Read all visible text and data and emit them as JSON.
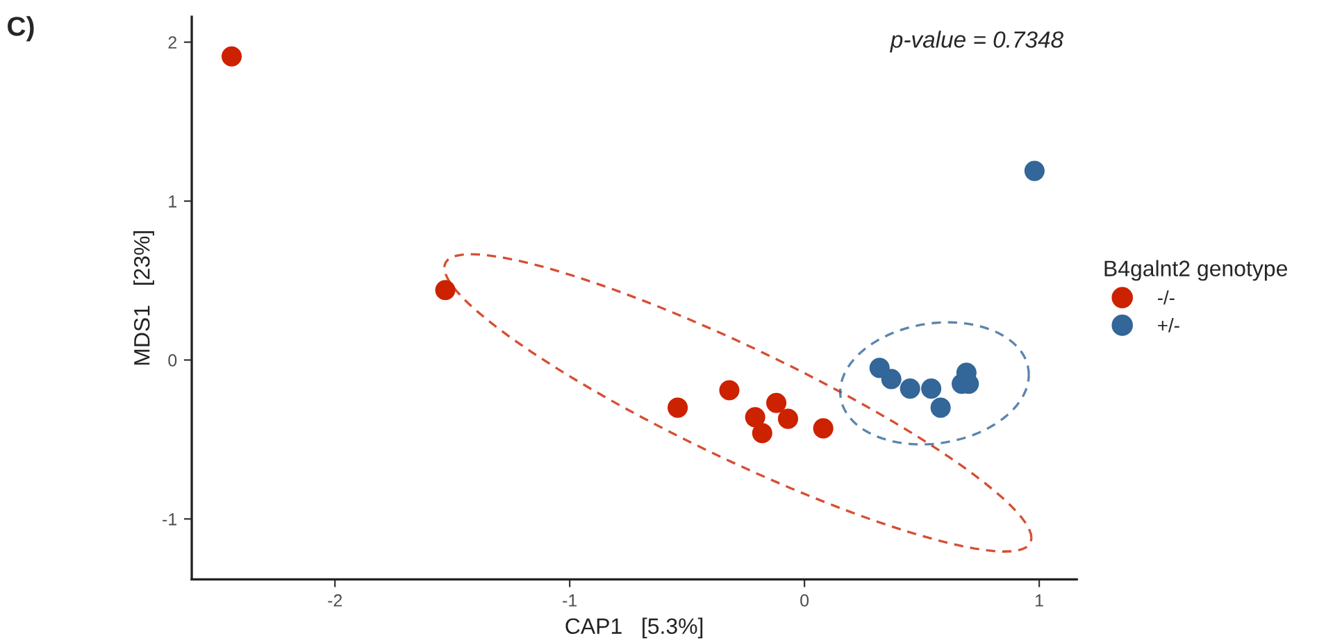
{
  "chart_data": {
    "type": "scatter",
    "xlabel": "CAP1   [5.3%]",
    "ylabel": "MDS1   [23%]",
    "legend_title": "B4galnt2 genotype",
    "annotations": [
      "C)",
      "p-value = 0.7348"
    ],
    "xlim": [
      -2.61,
      1.16
    ],
    "xticks": [
      {
        "value": -2,
        "label": "-2"
      },
      {
        "value": -1,
        "label": "-1"
      },
      0,
      1
    ],
    "ylim": [
      -1.38,
      2.16
    ],
    "yticks": [
      {
        "value": -1,
        "label": "-1"
      },
      0,
      1,
      2
    ],
    "grid": false,
    "legend": "right",
    "marker": "circle",
    "series": [
      {
        "name": "-/-",
        "color": "#cc2200",
        "x": [
          -2.44,
          -1.53,
          -0.54,
          -0.32,
          -0.21,
          -0.18,
          -0.12,
          -0.07,
          0.08
        ],
        "values": [
          1.91,
          0.44,
          -0.3,
          -0.19,
          -0.36,
          -0.46,
          -0.27,
          -0.37,
          -0.43
        ]
      },
      {
        "name": "+/-",
        "color": "#336699",
        "x": [
          0.32,
          0.37,
          0.45,
          0.54,
          0.58,
          0.69,
          0.67,
          0.7,
          0.98
        ],
        "values": [
          -0.05,
          -0.12,
          -0.18,
          -0.18,
          -0.3,
          -0.08,
          -0.15,
          -0.15,
          1.19
        ]
      }
    ]
  }
}
